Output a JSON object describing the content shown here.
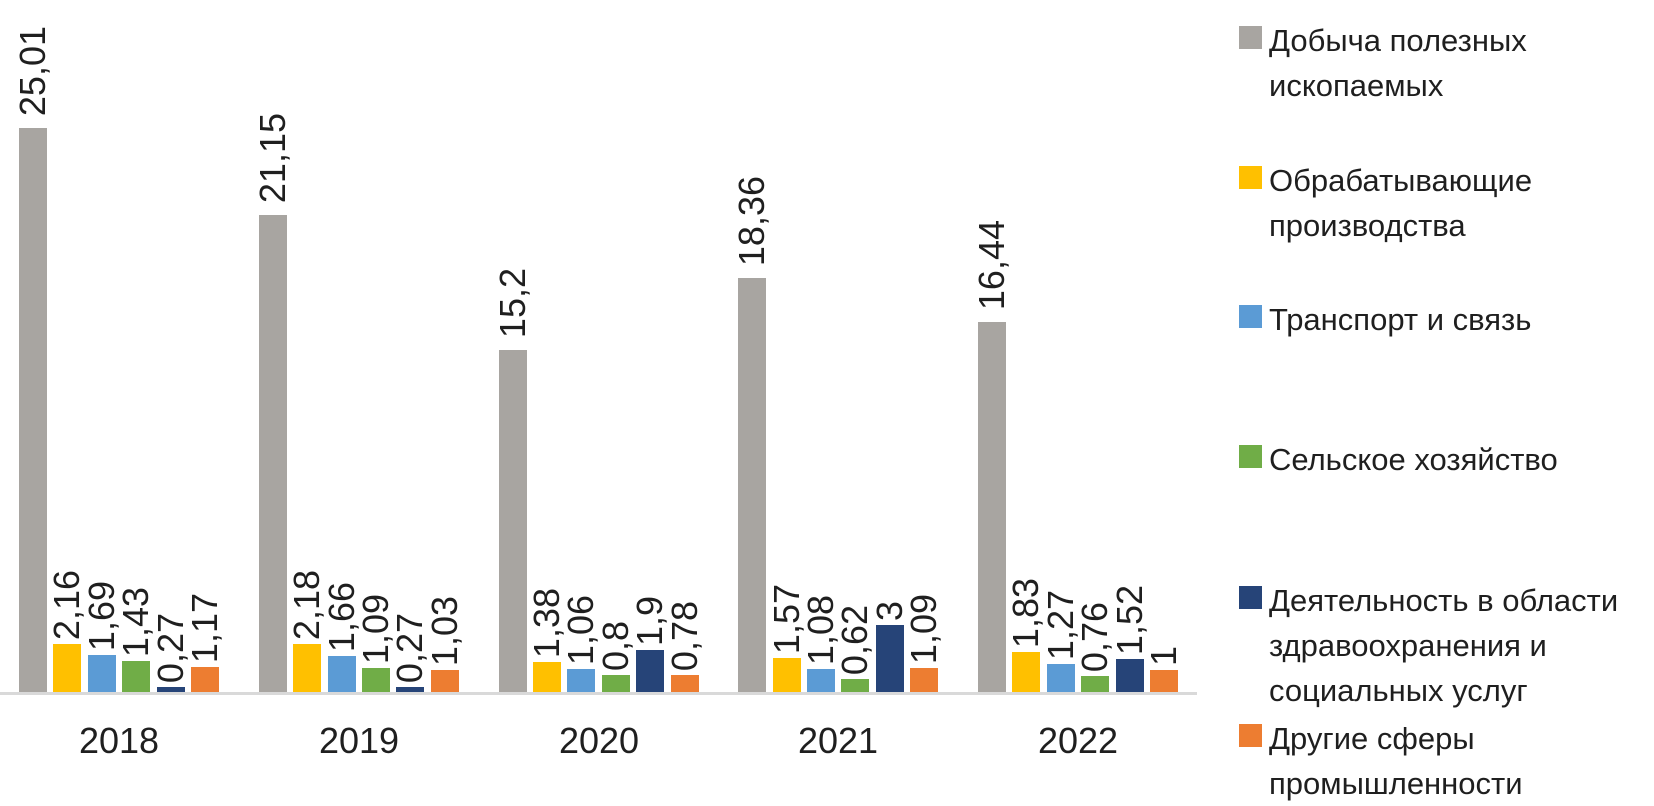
{
  "chart_data": {
    "type": "bar",
    "title": "",
    "xlabel": "",
    "ylabel": "",
    "categories": [
      "2018",
      "2019",
      "2020",
      "2021",
      "2022"
    ],
    "series": [
      {
        "name": "Добыча полезных ископаемых",
        "legend_label": "Добыча полезных\nископаемых",
        "color": "#a8a5a1",
        "values": [
          25.01,
          21.15,
          15.2,
          18.36,
          16.44
        ],
        "labels": [
          "25,01",
          "21,15",
          "15,2",
          "18,36",
          "16,44"
        ]
      },
      {
        "name": "Обрабатывающие производства",
        "legend_label": "Обрабатывающие\nпроизводства",
        "color": "#ffc000",
        "values": [
          2.16,
          2.18,
          1.38,
          1.57,
          1.83
        ],
        "labels": [
          "2,16",
          "2,18",
          "1,38",
          "1,57",
          "1,83"
        ]
      },
      {
        "name": "Транспорт и связь",
        "legend_label": "Транспорт и связь",
        "color": "#5b9bd5",
        "values": [
          1.69,
          1.66,
          1.06,
          1.08,
          1.27
        ],
        "labels": [
          "1,69",
          "1,66",
          "1,06",
          "1,08",
          "1,27"
        ]
      },
      {
        "name": "Сельское хозяйство",
        "legend_label": "Сельское хозяйство",
        "color": "#70ad47",
        "values": [
          1.43,
          1.09,
          0.8,
          0.62,
          0.76
        ],
        "labels": [
          "1,43",
          "1,09",
          "0,8",
          "0,62",
          "0,76"
        ]
      },
      {
        "name": "Деятельность в области здравоохранения и социальных услуг",
        "legend_label": "Деятельность в области\nздравоохранения и\nсоциальных услуг",
        "color": "#264478",
        "values": [
          0.27,
          0.27,
          1.9,
          3,
          1.52
        ],
        "labels": [
          "0,27",
          "0,27",
          "1,9",
          "3",
          "1,52"
        ]
      },
      {
        "name": "Другие сферы промышленности",
        "legend_label": "Другие сферы\nпромышленности",
        "color": "#ed7d31",
        "values": [
          1.17,
          1.03,
          0.78,
          1.09,
          1
        ],
        "labels": [
          "1,17",
          "1,03",
          "0,78",
          "1,09",
          "1"
        ]
      }
    ],
    "ylim": [
      0,
      26
    ],
    "grid": false,
    "y_axis_visible": false,
    "legend_position": "right",
    "value_labels_rotation_deg": -90,
    "decimal_separator": ",",
    "axis_line_color": "#d9d9d9",
    "text_color": "#1f1f1f",
    "background_color": "#ffffff"
  }
}
